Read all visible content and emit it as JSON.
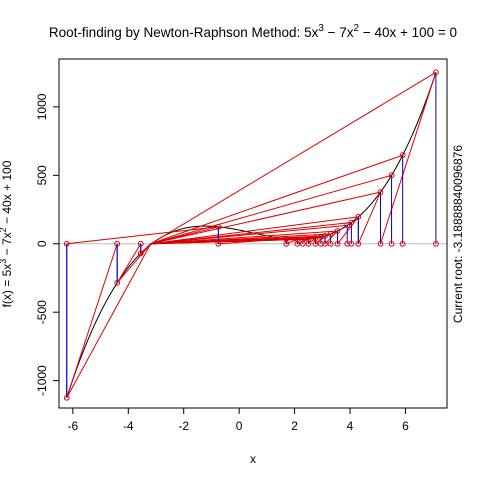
{
  "chart_data": {
    "type": "line",
    "title": "Root-finding by Newton-Raphson Method: 5x³ − 7x² − 40x + 100 = 0",
    "title_parts": {
      "prefix": "Root-finding by Newton-Raphson Method: 5x",
      "sup1": "3",
      "mid1": " − 7x",
      "sup2": "2",
      "suffix": " − 40x + 100 = 0"
    },
    "xlabel": "x",
    "ylabel_parts": {
      "prefix": "f(x) = 5x",
      "sup1": "3",
      "mid1": " − 7x",
      "sup2": "2",
      "suffix": " − 40x + 100"
    },
    "side_label": "Current root: -3.18888840096876",
    "xlim": [
      -6.5,
      7.5
    ],
    "ylim": [
      -1200,
      1350
    ],
    "x_ticks": [
      -6,
      -4,
      -2,
      0,
      2,
      4,
      6
    ],
    "x_tick_labels": [
      "-6",
      "-4",
      "-2",
      "0",
      "2",
      "4",
      "6"
    ],
    "y_ticks": [
      -1000,
      -500,
      0,
      500,
      1000
    ],
    "y_tick_labels": [
      "-1000",
      "-500",
      "0",
      "500",
      "1000"
    ],
    "curve": {
      "coefficients": [
        5,
        -7,
        -40,
        100
      ],
      "x_range": [
        -6.22,
        7.1
      ],
      "color": "#000000"
    },
    "iteration_starts": [
      7.1,
      5.9,
      5.5,
      5.1,
      4.3,
      4.05,
      3.9,
      3.55,
      3.3,
      3.1,
      2.95,
      2.75,
      2.5,
      2.3,
      2.1,
      1.7,
      -0.75,
      -6.22,
      -4.4,
      -3.55
    ],
    "newton_steps": [
      {
        "x": 7.1,
        "y": 1280
      },
      {
        "x": 5.1,
        "y": 375
      },
      {
        "x": 4.3,
        "y": 190
      },
      {
        "x": 3.55,
        "y": 100
      },
      {
        "x": 3.1,
        "y": 57
      },
      {
        "x": 2.75,
        "y": 40
      },
      {
        "x": 2.5,
        "y": 27
      },
      {
        "x": 2.1,
        "y": 18
      },
      {
        "x": 1.7,
        "y": 13
      },
      {
        "x": -0.75,
        "y": 125
      },
      {
        "x": -6.22,
        "y": -1140
      },
      {
        "x": -4.4,
        "y": -305
      },
      {
        "x": -3.55,
        "y": -55
      },
      {
        "x": -3.19,
        "y": 0
      }
    ],
    "colors": {
      "curve": "#000000",
      "tangent": "#dd0000",
      "vertical": "#0000cc",
      "points": "#ee0000",
      "zero_line": "#bebebe"
    }
  }
}
